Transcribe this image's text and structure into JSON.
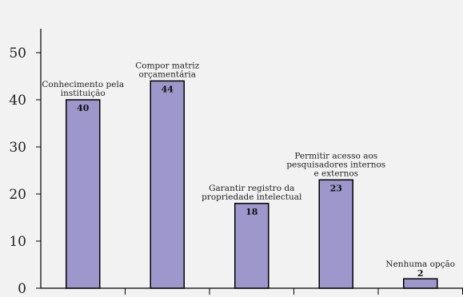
{
  "chart_data": {
    "type": "bar",
    "categories": [
      [
        "Conhecimento pela",
        "instituição"
      ],
      [
        "Compor matriz",
        "orçamentária"
      ],
      [
        "Garantir registro da",
        "propriedade intelectual"
      ],
      [
        "Permitir acesso aos",
        "pesquisadores internos",
        "e externos"
      ],
      [
        "Nenhuma opção"
      ]
    ],
    "values": [
      40,
      44,
      18,
      23,
      2
    ],
    "value_labels": [
      "40",
      "44",
      "18",
      "23",
      "2"
    ],
    "ylim": [
      0,
      50
    ],
    "yticks": [
      "0",
      "10",
      "20",
      "30",
      "40",
      "50"
    ],
    "title": "",
    "xlabel": "",
    "ylabel": "",
    "grid": false,
    "legend": "none",
    "colors": {
      "bar_fill": "#9e97cb",
      "bar_stroke": "#000000",
      "background": "#f2f2f2",
      "axis": "#000000"
    }
  }
}
